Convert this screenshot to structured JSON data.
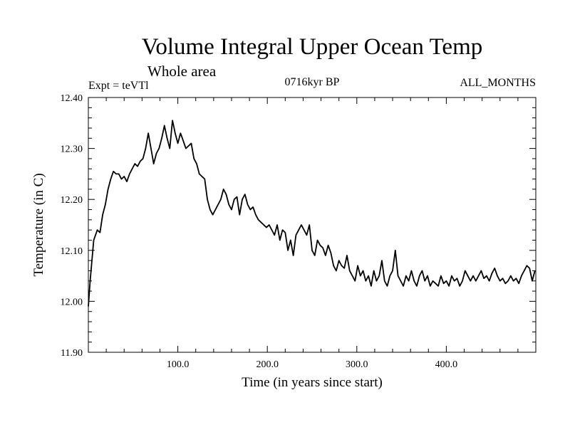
{
  "chart_data": {
    "type": "line",
    "title": "Volume Integral Upper Ocean Temp",
    "subtitle": "Whole area",
    "experiment": "Expt = teVTl",
    "period": "0716kyr BP",
    "months": "ALL_MONTHS",
    "xlabel": "Time (in years since start)",
    "ylabel": "Temperature (in C)",
    "xlim": [
      0,
      500
    ],
    "ylim": [
      11.9,
      12.4
    ],
    "x_ticks": [
      100,
      200,
      300,
      400
    ],
    "x_tick_labels": [
      "100.0",
      "200.0",
      "300.0",
      "400.0"
    ],
    "y_ticks": [
      11.9,
      12.0,
      12.1,
      12.2,
      12.3,
      12.4
    ],
    "y_tick_labels": [
      "11.90",
      "12.00",
      "12.10",
      "12.20",
      "12.30",
      "12.40"
    ],
    "grid": false,
    "line_color": "#000000",
    "series": [
      {
        "x": [
          0,
          2,
          4,
          6,
          8,
          10,
          13,
          16,
          19,
          22,
          25,
          28,
          31,
          34,
          37,
          40,
          43,
          46,
          49,
          52,
          55,
          58,
          61,
          64,
          67,
          70,
          73,
          76,
          79,
          82,
          85,
          88,
          91,
          94,
          97,
          100,
          103,
          106,
          109,
          112,
          115,
          118,
          121,
          124,
          127,
          130,
          133,
          136,
          139,
          142,
          145,
          148,
          151,
          154,
          157,
          160,
          163,
          166,
          169,
          172,
          175,
          178,
          181,
          184,
          187,
          190,
          193,
          196,
          199,
          202,
          205,
          208,
          211,
          214,
          217,
          220,
          223,
          226,
          229,
          232,
          235,
          238,
          241,
          244,
          247,
          250,
          253,
          256,
          259,
          262,
          265,
          268,
          271,
          274,
          277,
          280,
          283,
          286,
          289,
          292,
          295,
          298,
          301,
          304,
          307,
          310,
          313,
          316,
          319,
          322,
          325,
          328,
          331,
          334,
          337,
          340,
          343,
          346,
          349,
          352,
          355,
          358,
          361,
          364,
          367,
          370,
          373,
          376,
          379,
          382,
          385,
          388,
          391,
          394,
          397,
          400,
          403,
          406,
          409,
          412,
          415,
          418,
          421,
          424,
          427,
          430,
          433,
          436,
          439,
          442,
          445,
          448,
          451,
          454,
          457,
          460,
          463,
          466,
          469,
          472,
          475,
          478,
          481,
          484,
          487,
          490,
          493,
          496,
          499
        ],
        "values": [
          11.99,
          12.04,
          12.08,
          12.12,
          12.13,
          12.14,
          12.135,
          12.17,
          12.19,
          12.22,
          12.24,
          12.255,
          12.25,
          12.25,
          12.24,
          12.245,
          12.235,
          12.25,
          12.26,
          12.27,
          12.265,
          12.275,
          12.28,
          12.3,
          12.33,
          12.3,
          12.27,
          12.29,
          12.3,
          12.32,
          12.345,
          12.32,
          12.3,
          12.355,
          12.33,
          12.31,
          12.33,
          12.315,
          12.3,
          12.305,
          12.31,
          12.28,
          12.27,
          12.25,
          12.245,
          12.24,
          12.2,
          12.18,
          12.17,
          12.18,
          12.19,
          12.2,
          12.22,
          12.21,
          12.19,
          12.18,
          12.2,
          12.205,
          12.17,
          12.2,
          12.21,
          12.19,
          12.18,
          12.185,
          12.17,
          12.16,
          12.155,
          12.15,
          12.145,
          12.15,
          12.14,
          12.13,
          12.15,
          12.12,
          12.14,
          12.135,
          12.1,
          12.12,
          12.09,
          12.13,
          12.14,
          12.15,
          12.14,
          12.13,
          12.15,
          12.1,
          12.09,
          12.12,
          12.11,
          12.105,
          12.09,
          12.11,
          12.095,
          12.07,
          12.06,
          12.08,
          12.07,
          12.065,
          12.09,
          12.06,
          12.05,
          12.04,
          12.07,
          12.05,
          12.06,
          12.04,
          12.05,
          12.03,
          12.06,
          12.04,
          12.05,
          12.08,
          12.04,
          12.03,
          12.05,
          12.06,
          12.1,
          12.05,
          12.04,
          12.03,
          12.05,
          12.04,
          12.06,
          12.04,
          12.03,
          12.05,
          12.06,
          12.04,
          12.05,
          12.03,
          12.04,
          12.035,
          12.03,
          12.05,
          12.035,
          12.04,
          12.03,
          12.05,
          12.04,
          12.045,
          12.03,
          12.04,
          12.06,
          12.05,
          12.04,
          12.05,
          12.04,
          12.05,
          12.06,
          12.045,
          12.05,
          12.04,
          12.055,
          12.065,
          12.05,
          12.04,
          12.045,
          12.035,
          12.04,
          12.05,
          12.04,
          12.045,
          12.035,
          12.05,
          12.06,
          12.07,
          12.065,
          12.04,
          12.06
        ]
      }
    ]
  }
}
